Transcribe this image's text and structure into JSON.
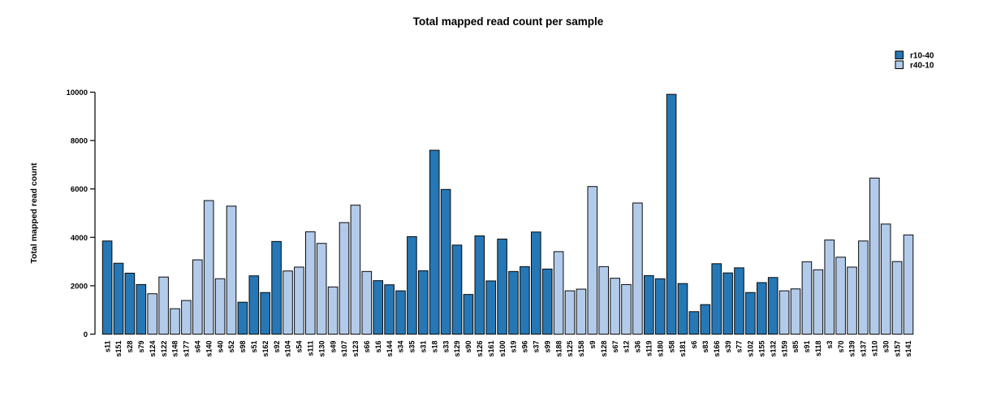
{
  "chart_data": {
    "type": "bar",
    "title": "Total mapped read count per sample",
    "xlabel": "",
    "ylabel": "Total mapped read count",
    "ylim": [
      0,
      10000
    ],
    "yticks": [
      0,
      2000,
      4000,
      6000,
      8000,
      10000
    ],
    "grid": false,
    "legend_position": "top-right",
    "legend": [
      {
        "label": "r10-40",
        "color": "#2577b5"
      },
      {
        "label": "r40-10",
        "color": "#b3cbea"
      }
    ],
    "bar_border_color": "#0a0a0a",
    "axis_color": "#000000",
    "categories": [
      "s11",
      "s151",
      "s28",
      "s79",
      "s124",
      "s122",
      "s148",
      "s177",
      "s64",
      "s140",
      "s40",
      "s52",
      "s98",
      "s51",
      "s162",
      "s92",
      "s104",
      "s54",
      "s111",
      "s130",
      "s49",
      "s107",
      "s123",
      "s66",
      "s16",
      "s144",
      "s34",
      "s35",
      "s31",
      "s18",
      "s33",
      "s129",
      "s90",
      "s126",
      "s161",
      "s100",
      "s19",
      "s96",
      "s37",
      "s99",
      "s188",
      "s125",
      "s158",
      "s9",
      "s128",
      "s67",
      "s12",
      "s36",
      "s119",
      "s180",
      "s58",
      "s181",
      "s6",
      "s83",
      "s166",
      "s39",
      "s77",
      "s102",
      "s155",
      "s132",
      "s159",
      "s85",
      "s91",
      "s118",
      "s3",
      "s70",
      "s139",
      "s137",
      "s110",
      "s30",
      "s157",
      "s141"
    ],
    "values": [
      3850,
      2930,
      2520,
      2050,
      1670,
      2360,
      1050,
      1390,
      3070,
      5520,
      2290,
      5290,
      1320,
      2410,
      1720,
      3830,
      2610,
      2770,
      4230,
      3750,
      1950,
      4610,
      5330,
      2590,
      2210,
      2040,
      1790,
      4030,
      2620,
      7600,
      5980,
      3680,
      1640,
      4060,
      2200,
      3930,
      2590,
      2790,
      4220,
      2690,
      3410,
      1790,
      1860,
      6100,
      2790,
      2310,
      2050,
      5420,
      2420,
      2290,
      9910,
      2090,
      930,
      1220,
      2910,
      2530,
      2740,
      1720,
      2130,
      2340,
      1790,
      1870,
      2990,
      2660,
      3890,
      3180,
      2770,
      3850,
      6450,
      4550,
      3000,
      4100
    ],
    "groups": [
      "r10-40",
      "r10-40",
      "r10-40",
      "r10-40",
      "r40-10",
      "r40-10",
      "r40-10",
      "r40-10",
      "r40-10",
      "r40-10",
      "r40-10",
      "r40-10",
      "r10-40",
      "r10-40",
      "r10-40",
      "r10-40",
      "r40-10",
      "r40-10",
      "r40-10",
      "r40-10",
      "r40-10",
      "r40-10",
      "r40-10",
      "r40-10",
      "r10-40",
      "r10-40",
      "r10-40",
      "r10-40",
      "r10-40",
      "r10-40",
      "r10-40",
      "r10-40",
      "r10-40",
      "r10-40",
      "r10-40",
      "r10-40",
      "r10-40",
      "r10-40",
      "r10-40",
      "r10-40",
      "r40-10",
      "r40-10",
      "r40-10",
      "r40-10",
      "r40-10",
      "r40-10",
      "r40-10",
      "r40-10",
      "r10-40",
      "r10-40",
      "r10-40",
      "r10-40",
      "r10-40",
      "r10-40",
      "r10-40",
      "r10-40",
      "r10-40",
      "r10-40",
      "r10-40",
      "r10-40",
      "r40-10",
      "r40-10",
      "r40-10",
      "r40-10",
      "r40-10",
      "r40-10",
      "r40-10",
      "r40-10",
      "r40-10",
      "r40-10",
      "r40-10",
      "r40-10"
    ]
  }
}
